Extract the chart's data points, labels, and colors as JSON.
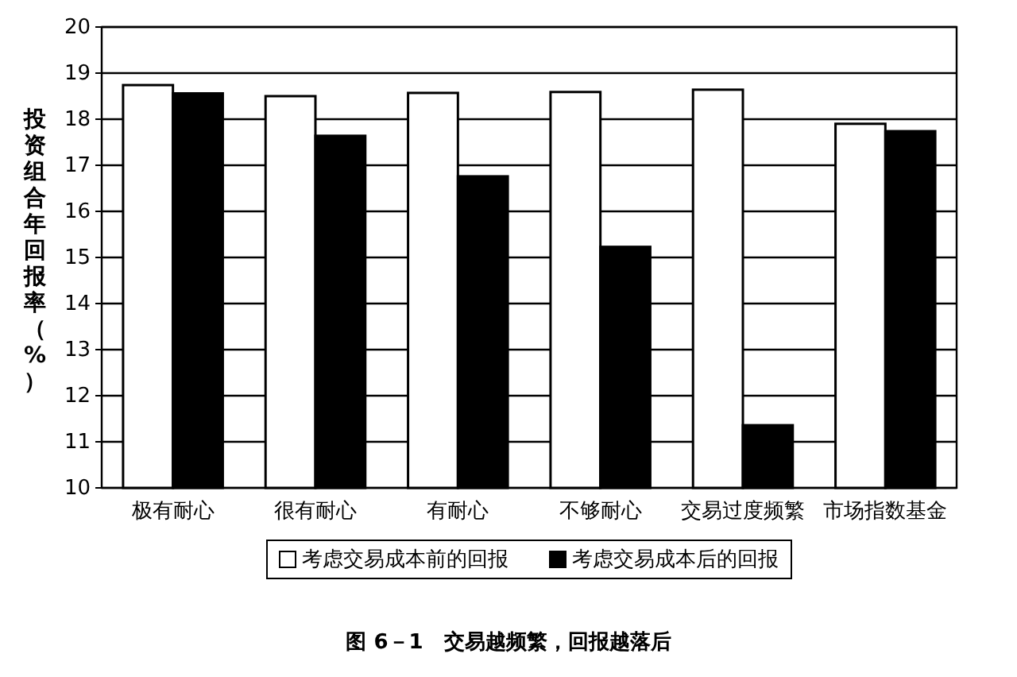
{
  "chart_data": {
    "type": "bar",
    "title": "图 6－1　交易越频繁，回报越落后",
    "ylabel": "投资组合年回报率（%）",
    "categories": [
      "极有耐心",
      "很有耐心",
      "有耐心",
      "不够耐心",
      "交易过度频繁",
      "市场指数基金"
    ],
    "series": [
      {
        "name": "考虑交易成本前的回报",
        "color": "#ffffff",
        "values": [
          18.74,
          18.5,
          18.57,
          18.59,
          18.64,
          17.9
        ]
      },
      {
        "name": "考虑交易成本后的回报",
        "color": "#000000",
        "values": [
          18.56,
          17.64,
          16.76,
          15.23,
          11.36,
          17.74
        ]
      }
    ],
    "ylim": [
      10,
      20
    ],
    "yticks": [
      10,
      11,
      12,
      13,
      14,
      15,
      16,
      17,
      18,
      19,
      20
    ],
    "grid": "y",
    "legend": "bottom"
  }
}
